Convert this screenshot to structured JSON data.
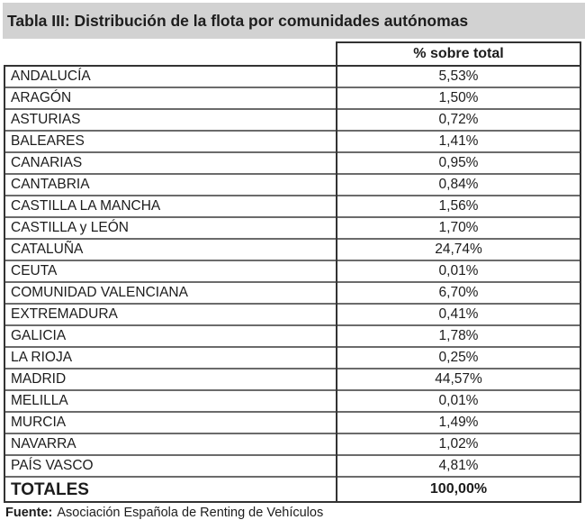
{
  "title": "Tabla III: Distribución de la flota por comunidades autónomas",
  "table": {
    "value_header": "% sobre total",
    "rows": [
      {
        "region": "ANDALUCÍA",
        "value": "5,53%"
      },
      {
        "region": "ARAGÓN",
        "value": "1,50%"
      },
      {
        "region": "ASTURIAS",
        "value": "0,72%"
      },
      {
        "region": "BALEARES",
        "value": "1,41%"
      },
      {
        "region": "CANARIAS",
        "value": "0,95%"
      },
      {
        "region": "CANTABRIA",
        "value": "0,84%"
      },
      {
        "region": "CASTILLA LA MANCHA",
        "value": "1,56%"
      },
      {
        "region": "CASTILLA y LEÓN",
        "value": "1,70%"
      },
      {
        "region": "CATALUÑA",
        "value": "24,74%"
      },
      {
        "region": "CEUTA",
        "value": "0,01%"
      },
      {
        "region": "COMUNIDAD VALENCIANA",
        "value": "6,70%"
      },
      {
        "region": "EXTREMADURA",
        "value": "0,41%"
      },
      {
        "region": "GALICIA",
        "value": "1,78%"
      },
      {
        "region": "LA RIOJA",
        "value": "0,25%"
      },
      {
        "region": "MADRID",
        "value": "44,57%"
      },
      {
        "region": "MELILLA",
        "value": "0,01%"
      },
      {
        "region": "MURCIA",
        "value": "1,49%"
      },
      {
        "region": "NAVARRA",
        "value": "1,02%"
      },
      {
        "region": "PAÍS VASCO",
        "value": "4,81%"
      }
    ],
    "total": {
      "label": "TOTALES",
      "value": "100,00%"
    }
  },
  "footer": {
    "source_label": "Fuente:",
    "source_text": "Asociación Española de Renting de Vehículos"
  },
  "colors": {
    "title_background": "#d2d2d2",
    "outer_border": "#333333",
    "row_border": "#6b6b6b",
    "text": "#1c1c1c"
  }
}
